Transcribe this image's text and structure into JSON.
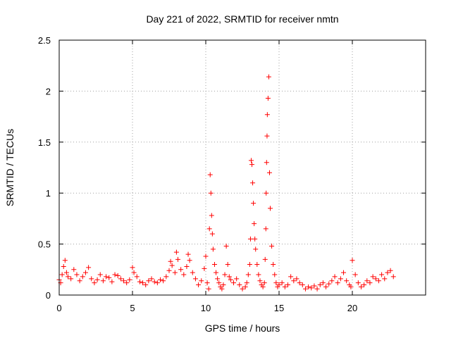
{
  "chart_data": {
    "type": "scatter",
    "title": "Day 221 of 2022, SRMTID for receiver nmtn",
    "xlabel": "GPS time / hours",
    "ylabel": "SRMTID / TECUs",
    "xlim": [
      0,
      25
    ],
    "ylim": [
      0,
      2.5
    ],
    "xticks": [
      0,
      5,
      10,
      15,
      20
    ],
    "xtick_labels": [
      "0",
      "5",
      "10",
      "15",
      "20"
    ],
    "yticks": [
      0,
      0.5,
      1,
      1.5,
      2,
      2.5
    ],
    "ytick_labels": [
      "0",
      "0.5",
      "1",
      "1.5",
      "2",
      "2.5"
    ],
    "grid": true,
    "marker": "+",
    "series": [
      {
        "name": "SRMTID",
        "color": "#ff0000",
        "x": [
          0.0,
          0.1,
          0.2,
          0.3,
          0.4,
          0.5,
          0.6,
          0.8,
          1.0,
          1.2,
          1.4,
          1.6,
          1.8,
          2.0,
          2.2,
          2.4,
          2.6,
          2.8,
          3.0,
          3.2,
          3.4,
          3.6,
          3.8,
          4.0,
          4.2,
          4.4,
          4.6,
          4.8,
          5.0,
          5.1,
          5.3,
          5.5,
          5.7,
          5.9,
          6.1,
          6.3,
          6.5,
          6.7,
          6.9,
          7.1,
          7.3,
          7.5,
          7.6,
          7.7,
          7.9,
          8.0,
          8.1,
          8.3,
          8.5,
          8.7,
          8.8,
          8.9,
          9.1,
          9.3,
          9.5,
          9.7,
          9.9,
          10.0,
          10.1,
          10.2,
          10.25,
          10.3,
          10.35,
          10.4,
          10.45,
          10.5,
          10.6,
          10.7,
          10.8,
          10.9,
          11.0,
          11.1,
          11.2,
          11.3,
          11.4,
          11.5,
          11.6,
          11.7,
          11.9,
          12.1,
          12.3,
          12.5,
          12.7,
          12.8,
          12.9,
          13.0,
          13.05,
          13.1,
          13.15,
          13.2,
          13.25,
          13.3,
          13.35,
          13.4,
          13.5,
          13.6,
          13.7,
          13.8,
          13.9,
          14.0,
          14.05,
          14.1,
          14.12,
          14.15,
          14.18,
          14.2,
          14.25,
          14.3,
          14.35,
          14.4,
          14.5,
          14.6,
          14.7,
          14.8,
          14.9,
          15.0,
          15.2,
          15.4,
          15.6,
          15.8,
          16.0,
          16.2,
          16.4,
          16.6,
          16.8,
          17.0,
          17.2,
          17.4,
          17.6,
          17.8,
          18.0,
          18.2,
          18.4,
          18.6,
          18.8,
          19.0,
          19.2,
          19.4,
          19.6,
          19.8,
          19.9,
          20.0,
          20.2,
          20.4,
          20.6,
          20.8,
          21.0,
          21.2,
          21.4,
          21.6,
          21.8,
          22.0,
          22.2,
          22.4,
          22.6,
          22.8
        ],
        "y": [
          0.15,
          0.12,
          0.2,
          0.28,
          0.34,
          0.22,
          0.18,
          0.16,
          0.25,
          0.2,
          0.14,
          0.18,
          0.22,
          0.27,
          0.16,
          0.12,
          0.15,
          0.2,
          0.14,
          0.18,
          0.17,
          0.13,
          0.2,
          0.19,
          0.16,
          0.14,
          0.12,
          0.15,
          0.27,
          0.22,
          0.18,
          0.13,
          0.12,
          0.1,
          0.14,
          0.16,
          0.13,
          0.12,
          0.15,
          0.14,
          0.18,
          0.24,
          0.33,
          0.29,
          0.22,
          0.42,
          0.35,
          0.25,
          0.2,
          0.28,
          0.4,
          0.34,
          0.22,
          0.16,
          0.1,
          0.14,
          0.26,
          0.38,
          0.12,
          0.06,
          0.65,
          1.18,
          1.0,
          0.78,
          0.6,
          0.45,
          0.3,
          0.22,
          0.16,
          0.12,
          0.08,
          0.06,
          0.1,
          0.2,
          0.48,
          0.3,
          0.18,
          0.15,
          0.12,
          0.16,
          0.1,
          0.06,
          0.08,
          0.12,
          0.2,
          0.3,
          0.55,
          1.32,
          1.28,
          1.1,
          0.9,
          0.7,
          0.55,
          0.45,
          0.3,
          0.2,
          0.14,
          0.1,
          0.08,
          0.12,
          0.35,
          0.65,
          1.0,
          1.3,
          1.56,
          1.77,
          1.93,
          2.14,
          1.2,
          0.85,
          0.48,
          0.3,
          0.2,
          0.12,
          0.08,
          0.1,
          0.12,
          0.08,
          0.1,
          0.18,
          0.14,
          0.16,
          0.12,
          0.1,
          0.06,
          0.08,
          0.07,
          0.09,
          0.06,
          0.1,
          0.12,
          0.08,
          0.11,
          0.14,
          0.18,
          0.12,
          0.16,
          0.22,
          0.14,
          0.1,
          0.08,
          0.34,
          0.2,
          0.12,
          0.08,
          0.1,
          0.14,
          0.12,
          0.18,
          0.16,
          0.14,
          0.2,
          0.16,
          0.22,
          0.24,
          0.18
        ]
      }
    ]
  }
}
